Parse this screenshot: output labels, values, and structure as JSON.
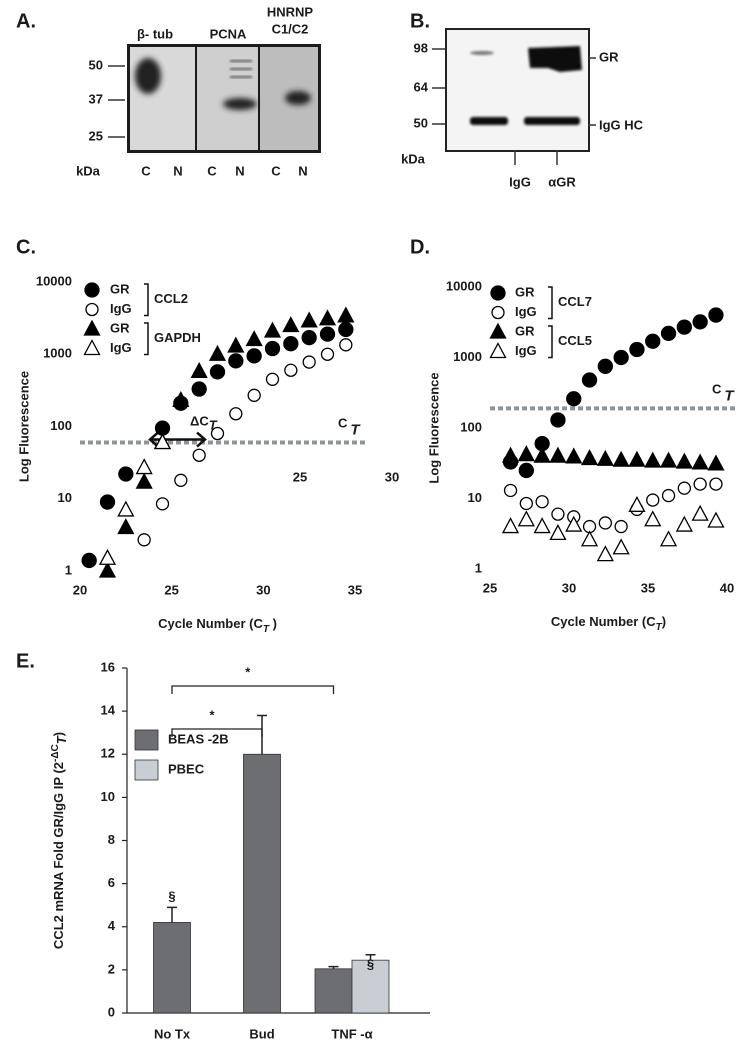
{
  "blot_a": {
    "panel": "A.",
    "headers": [
      "β- tub",
      "PCNA",
      [
        "HNRNP",
        "C1/C2"
      ]
    ],
    "markers": [
      50,
      37,
      25
    ],
    "unit": "kDa",
    "lanes": [
      "C",
      "N",
      "C",
      "N",
      "C",
      "N"
    ]
  },
  "blot_b": {
    "panel": "B.",
    "markers": [
      98,
      64,
      50
    ],
    "unit": "kDa",
    "lanes": [
      "IgG",
      "αGR"
    ],
    "bands": [
      "GR",
      "IgG HC"
    ]
  },
  "chart_data": [
    {
      "type": "scatter",
      "panel": "C.",
      "log_y": true,
      "y_label": "Log Fluorescence",
      "x_label": "Cycle Number (C",
      "x_label_sub": "T",
      "x_label_end": " )",
      "x": [
        20.5,
        21.5,
        22.5,
        23.5,
        24.5,
        25.5,
        26.5,
        27.5,
        28.5,
        29.5,
        30.5,
        31.5,
        32.5,
        33.5,
        34.5
      ],
      "series": [
        {
          "name": "GR",
          "group": "CCL2",
          "marker": "circle",
          "filled": true,
          "color": "#000000",
          "values": [
            1.4,
            9,
            22,
            null,
            95,
            210,
            330,
            570,
            810,
            950,
            1200,
            1400,
            1700,
            1900,
            2200
          ]
        },
        {
          "name": "IgG",
          "group": "CCL2",
          "marker": "circle",
          "filled": false,
          "color": "#000000",
          "values": [
            null,
            null,
            null,
            2.7,
            8.5,
            18,
            40,
            80,
            150,
            270,
            450,
            600,
            780,
            1000,
            1350
          ]
        },
        {
          "name": "GR",
          "group": "GAPDH",
          "marker": "triangle",
          "filled": true,
          "color": "#000000",
          "values": [
            null,
            1,
            4,
            17,
            60,
            230,
            580,
            1000,
            1300,
            1600,
            2100,
            2500,
            2900,
            3100,
            3400
          ]
        },
        {
          "name": "IgG",
          "group": "GAPDH",
          "marker": "triangle",
          "filled": false,
          "color": "#000000",
          "values": [
            null,
            1.5,
            7,
            27,
            60,
            null,
            null,
            null,
            null,
            null,
            null,
            null,
            null,
            null,
            null
          ]
        }
      ],
      "xlim": [
        20,
        35
      ],
      "xticks": [
        20,
        25,
        30,
        35
      ],
      "ylim": [
        1,
        10000
      ],
      "yticks": [
        1,
        10,
        100,
        1000,
        10000
      ],
      "threshold": 60,
      "threshold_color": "#8c959c",
      "threshold_label": "C",
      "threshold_sub": "T",
      "delta_label": "ΔC",
      "delta_sub": "T",
      "extra_labels": [
        "25",
        "30"
      ]
    },
    {
      "type": "scatter",
      "panel": "D.",
      "log_y": true,
      "y_label": "Log Fluorescence",
      "x_label": "Cycle Number (C",
      "x_label_sub": "T",
      "x_label_end": ")",
      "x": [
        26.3,
        27.3,
        28.3,
        29.3,
        30.3,
        31.3,
        32.3,
        33.3,
        34.3,
        35.3,
        36.3,
        37.3,
        38.3,
        39.3
      ],
      "series": [
        {
          "name": "GR",
          "group": "CCL7",
          "marker": "circle",
          "filled": true,
          "color": "#000000",
          "values": [
            33,
            25,
            60,
            130,
            260,
            480,
            750,
            1000,
            1300,
            1700,
            2200,
            2700,
            3200,
            4000
          ]
        },
        {
          "name": "IgG",
          "group": "CCL7",
          "marker": "circle",
          "filled": false,
          "color": "#000000",
          "values": [
            13,
            8.5,
            9,
            6,
            5.5,
            4,
            4.5,
            4,
            7,
            9.5,
            11,
            14,
            16,
            16
          ]
        },
        {
          "name": "GR",
          "group": "CCL5",
          "marker": "triangle",
          "filled": true,
          "color": "#000000",
          "values": [
            40,
            42,
            40,
            40,
            39,
            37,
            36,
            35,
            35,
            34,
            34,
            33,
            32,
            31
          ]
        },
        {
          "name": "IgG",
          "group": "CCL5",
          "marker": "triangle",
          "filled": false,
          "color": "#000000",
          "values": [
            4,
            5,
            4,
            3.2,
            4.2,
            2.6,
            1.6,
            2,
            8,
            5,
            2.6,
            4.2,
            6,
            4.8
          ]
        }
      ],
      "xlim": [
        25,
        40
      ],
      "xticks": [
        25,
        30,
        35,
        40
      ],
      "ylim": [
        1,
        10000
      ],
      "yticks": [
        1,
        10,
        100,
        1000,
        10000
      ],
      "threshold": 190,
      "threshold_color": "#8c959c",
      "threshold_label": "C",
      "threshold_sub": "T"
    },
    {
      "type": "bar",
      "panel": "E.",
      "y_label": "CCL2 mRNA Fold GR/IgG IP (2",
      "y_label_sup": "-ΔC",
      "y_label_sub": "T",
      "y_label_end": ")",
      "categories": [
        "No  Tx",
        "Bud",
        "TNF -α"
      ],
      "series": [
        {
          "name": "BEAS -2B",
          "color": "#6d6e71",
          "values": [
            4.2,
            12,
            2.05
          ],
          "errors": [
            0.7,
            1.8,
            0.1
          ]
        },
        {
          "name": "PBEC",
          "color": "#c9cdd4",
          "values": [
            null,
            null,
            2.45
          ],
          "errors": [
            null,
            null,
            0.25
          ]
        }
      ],
      "ylim": [
        0,
        16
      ],
      "yticks": [
        0,
        2,
        4,
        6,
        8,
        10,
        12,
        14,
        16
      ],
      "section": "§",
      "significance": "*"
    }
  ]
}
